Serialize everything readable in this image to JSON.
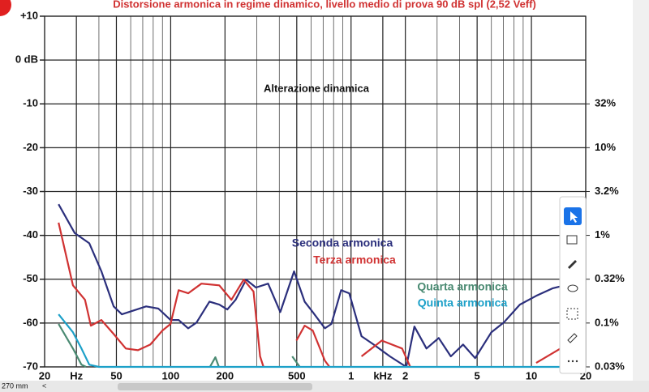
{
  "chart_data": {
    "type": "line",
    "title": "Distorsione armonica in regime dinamico, livello medio di prova 90 dB spl (2,52 Veff)",
    "annotation": "Alterazione dinamica",
    "xlim": [
      20,
      20000
    ],
    "xscale": "log",
    "xticks": [
      20,
      {
        "value": 30,
        "label": "Hz"
      },
      50,
      100,
      200,
      500,
      {
        "value": 1000,
        "label": "1"
      },
      {
        "value": 1500,
        "label": "kHz"
      },
      {
        "value": 2000,
        "label": "2"
      },
      {
        "value": 5000,
        "label": "5"
      },
      {
        "value": 10000,
        "label": "10"
      },
      {
        "value": 20000,
        "label": "20"
      }
    ],
    "xgrid": [
      40,
      60,
      70,
      80,
      90,
      300,
      400,
      600,
      700,
      800,
      900,
      3000,
      4000,
      6000,
      7000,
      8000,
      9000
    ],
    "ylim": [
      -70,
      10
    ],
    "yticks": [
      {
        "value": 10,
        "label": "+10"
      },
      {
        "value": 0,
        "label": "0 dB"
      },
      -10,
      -20,
      -30,
      -40,
      -50,
      -60,
      -70
    ],
    "y2lim": [
      0.0316,
      316
    ],
    "y2scale": "log",
    "y2ticks": [
      {
        "value": 31.6,
        "label": "32%"
      },
      {
        "value": 10,
        "label": "10%"
      },
      {
        "value": 3.16,
        "label": "3.2%"
      },
      {
        "value": 1,
        "label": "1%"
      },
      {
        "value": 0.316,
        "label": "0.32%"
      },
      {
        "value": 0.1,
        "label": "0.1%"
      },
      {
        "value": 0.0316,
        "label": "0.03%"
      }
    ],
    "grid": true,
    "series": [
      {
        "name": "Seconda armonica",
        "color": "#2b2f7c",
        "x": [
          23.9,
          29.4,
          35.4,
          41.3,
          48.3,
          53.6,
          62.6,
          73.1,
          85.4,
          99.8,
          110.7,
          125,
          139,
          164,
          186,
          206,
          229,
          262,
          297,
          347,
          405,
          483,
          553,
          613,
          716,
          778,
          881,
          977,
          1143,
          1334,
          1641,
          2023,
          2244,
          2620,
          3062,
          3575,
          4179,
          4877,
          5999,
          7016,
          8630,
          10618,
          13071,
          15283
        ],
        "values": [
          -32.9,
          -39.5,
          -41.8,
          -48.2,
          -56.2,
          -58,
          -57.1,
          -56.2,
          -56.7,
          -59.3,
          -59.3,
          -61.2,
          -59.9,
          -55.1,
          -55.8,
          -56.9,
          -54.7,
          -50.1,
          -51.9,
          -51,
          -57.5,
          -48.2,
          -55.1,
          -57.5,
          -61.2,
          -60.2,
          -52.5,
          -53.2,
          -63,
          -64.9,
          -67.6,
          -70,
          -60.8,
          -65.8,
          -63.4,
          -67.6,
          -64.9,
          -68,
          -62.1,
          -59.9,
          -55.8,
          -53.8,
          -52.1,
          -51.4
        ]
      },
      {
        "name": "Terza armonica",
        "color": "#d03232",
        "x": [
          23.9,
          28.7,
          33.5,
          36.1,
          41.3,
          48.3,
          56.4,
          65.9,
          77.1,
          90,
          99.8,
          110.7,
          125,
          148,
          186,
          217,
          254,
          288,
          313,
          327,
          400,
          498,
          553,
          613,
          716,
          760,
          900,
          1143,
          1480,
          1919,
          2130,
          5000,
          10618,
          14500
        ],
        "values": [
          -37.1,
          -51.4,
          -54.7,
          -60.6,
          -59.3,
          -62.5,
          -65.8,
          -66.2,
          -64.9,
          -61.7,
          -60.2,
          -52.5,
          -53.2,
          -51,
          -51.4,
          -54.7,
          -50.1,
          -52.8,
          -67.6,
          -70,
          null,
          -64,
          -60.6,
          -61.7,
          -68.6,
          -70,
          null,
          -67.6,
          -64,
          -65.8,
          -70,
          null,
          -69.1,
          -65.8
        ]
      },
      {
        "name": "Quarta armonica",
        "color": "#4a8a72",
        "x": [
          23.9,
          28.7,
          32,
          34,
          150,
          165,
          177,
          185,
          400,
          472,
          520
        ],
        "values": [
          -60.2,
          -65.8,
          -69.5,
          -70,
          null,
          -70,
          -67.8,
          -70,
          null,
          -67.6,
          -70
        ]
      },
      {
        "name": "Quinta armonica",
        "color": "#1ca0c8",
        "x": [
          23.9,
          28.7,
          32,
          35.4,
          40,
          20000
        ],
        "values": [
          -58,
          -62.1,
          -65.8,
          -69.5,
          -70,
          -70
        ]
      }
    ]
  },
  "ui": {
    "ruler": "270 mm"
  }
}
